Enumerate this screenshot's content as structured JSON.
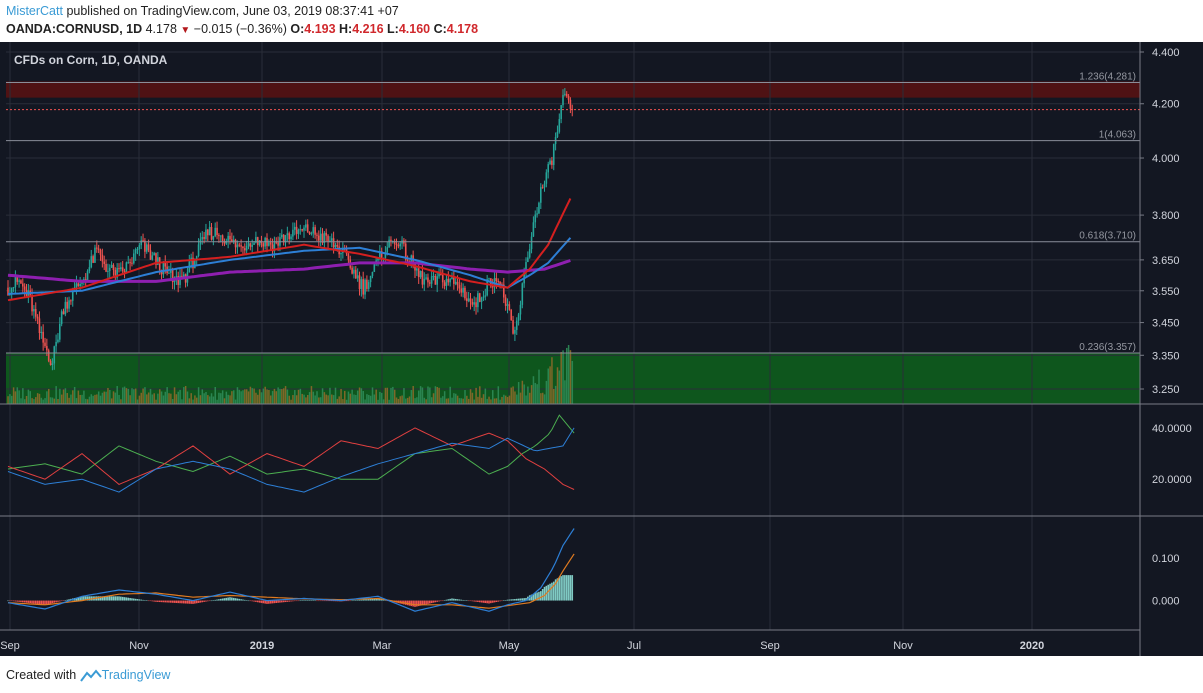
{
  "header": {
    "user": "MisterCatt",
    "published": "published on TradingView.com, June 03, 2019 08:37:41 +07",
    "symbol": "OANDA:CORNUSD, 1D",
    "last": "4.178",
    "change": "−0.015 (−0.36%)",
    "o_label": "O:",
    "o": "4.193",
    "h_label": "H:",
    "h": "4.216",
    "l_label": "L:",
    "l": "4.160",
    "c_label": "C:",
    "c": "4.178"
  },
  "footer": {
    "created_with": "Created with",
    "brand": "TradingView"
  },
  "colors": {
    "background": "#131722",
    "up": "#26a69a",
    "down": "#ef5350",
    "ema_red": "#d41f1f",
    "ema_blue": "#2d7fd6",
    "ema_purple": "#8e1fb0",
    "fib_top_zone": "#5a1212",
    "fib_bottom_zone": "#0e5a1d",
    "adx_red": "#e04040",
    "adx_green": "#4caf50",
    "adx_blue": "#2d7fd6",
    "macd_blue": "#2d7fd6",
    "macd_orange": "#e07b20"
  },
  "chart_data": {
    "type": "candlestick",
    "title": "CFDs on Corn, 1D, OANDA",
    "price_axis": {
      "ticks": [
        "4.400",
        "4.200",
        "4.000",
        "3.800",
        "3.650",
        "3.550",
        "3.450",
        "3.350",
        "3.250"
      ],
      "scale": "log"
    },
    "time_axis": {
      "ticks": [
        "Sep",
        "Nov",
        "2019",
        "Mar",
        "May",
        "Jul",
        "Sep",
        "Nov",
        "2020"
      ]
    },
    "fib_levels": [
      {
        "ratio": "1.236",
        "price": 4.281,
        "label": "1.236(4.281)"
      },
      {
        "ratio": "1",
        "price": 4.063,
        "label": "1(4.063)"
      },
      {
        "ratio": "0.618",
        "price": 3.71,
        "label": "0.618(3.710)"
      },
      {
        "ratio": "0.236",
        "price": 3.357,
        "label": "0.236(3.357)"
      }
    ],
    "last_price": 4.178,
    "price_anchors": [
      [
        0,
        3.56
      ],
      [
        6,
        3.58
      ],
      [
        12,
        3.52
      ],
      [
        18,
        3.4
      ],
      [
        24,
        3.33
      ],
      [
        30,
        3.5
      ],
      [
        36,
        3.55
      ],
      [
        42,
        3.6
      ],
      [
        48,
        3.68
      ],
      [
        54,
        3.62
      ],
      [
        60,
        3.6
      ],
      [
        66,
        3.64
      ],
      [
        72,
        3.7
      ],
      [
        78,
        3.66
      ],
      [
        84,
        3.62
      ],
      [
        90,
        3.58
      ],
      [
        96,
        3.6
      ],
      [
        102,
        3.67
      ],
      [
        108,
        3.74
      ],
      [
        114,
        3.74
      ],
      [
        120,
        3.71
      ],
      [
        126,
        3.69
      ],
      [
        132,
        3.72
      ],
      [
        138,
        3.71
      ],
      [
        144,
        3.7
      ],
      [
        150,
        3.73
      ],
      [
        156,
        3.74
      ],
      [
        162,
        3.75
      ],
      [
        168,
        3.73
      ],
      [
        174,
        3.71
      ],
      [
        180,
        3.68
      ],
      [
        186,
        3.62
      ],
      [
        192,
        3.56
      ],
      [
        198,
        3.62
      ],
      [
        204,
        3.69
      ],
      [
        210,
        3.72
      ],
      [
        216,
        3.66
      ],
      [
        222,
        3.6
      ],
      [
        228,
        3.57
      ],
      [
        234,
        3.59
      ],
      [
        240,
        3.58
      ],
      [
        246,
        3.55
      ],
      [
        252,
        3.5
      ],
      [
        258,
        3.56
      ],
      [
        264,
        3.6
      ],
      [
        270,
        3.5
      ],
      [
        273,
        3.4
      ],
      [
        276,
        3.47
      ],
      [
        279,
        3.6
      ],
      [
        282,
        3.7
      ],
      [
        285,
        3.8
      ],
      [
        288,
        3.88
      ],
      [
        291,
        3.93
      ],
      [
        294,
        4.0
      ],
      [
        297,
        4.1
      ],
      [
        300,
        4.22
      ],
      [
        303,
        4.2
      ],
      [
        305,
        4.18
      ]
    ],
    "ema_fast": [
      [
        0,
        3.52
      ],
      [
        40,
        3.56
      ],
      [
        80,
        3.64
      ],
      [
        120,
        3.66
      ],
      [
        160,
        3.7
      ],
      [
        190,
        3.67
      ],
      [
        220,
        3.63
      ],
      [
        250,
        3.58
      ],
      [
        270,
        3.56
      ],
      [
        282,
        3.62
      ],
      [
        292,
        3.7
      ],
      [
        305,
        3.87
      ]
    ],
    "ema_slow": [
      [
        0,
        3.54
      ],
      [
        40,
        3.55
      ],
      [
        80,
        3.61
      ],
      [
        120,
        3.65
      ],
      [
        160,
        3.68
      ],
      [
        190,
        3.69
      ],
      [
        220,
        3.65
      ],
      [
        250,
        3.6
      ],
      [
        270,
        3.56
      ],
      [
        282,
        3.6
      ],
      [
        292,
        3.64
      ],
      [
        305,
        3.73
      ]
    ],
    "ema_long": [
      [
        0,
        3.6
      ],
      [
        40,
        3.58
      ],
      [
        80,
        3.58
      ],
      [
        120,
        3.61
      ],
      [
        160,
        3.62
      ],
      [
        190,
        3.64
      ],
      [
        220,
        3.64
      ],
      [
        250,
        3.62
      ],
      [
        270,
        3.61
      ],
      [
        290,
        3.62
      ],
      [
        305,
        3.65
      ]
    ],
    "volume_range": [
      0,
      1
    ],
    "adx": {
      "ticks": [
        "40.0000",
        "20.0000"
      ],
      "range": [
        8,
        47
      ],
      "plus_di": [
        [
          0,
          25
        ],
        [
          20,
          20
        ],
        [
          40,
          30
        ],
        [
          60,
          18
        ],
        [
          80,
          24
        ],
        [
          100,
          33
        ],
        [
          120,
          22
        ],
        [
          140,
          30
        ],
        [
          160,
          25
        ],
        [
          180,
          35
        ],
        [
          200,
          32
        ],
        [
          220,
          40
        ],
        [
          240,
          33
        ],
        [
          260,
          38
        ],
        [
          270,
          35
        ],
        [
          280,
          28
        ],
        [
          290,
          24
        ],
        [
          300,
          18
        ],
        [
          306,
          16
        ]
      ],
      "minus_di": [
        [
          0,
          24
        ],
        [
          20,
          26
        ],
        [
          40,
          22
        ],
        [
          60,
          33
        ],
        [
          80,
          27
        ],
        [
          100,
          23
        ],
        [
          120,
          29
        ],
        [
          140,
          22
        ],
        [
          160,
          24
        ],
        [
          180,
          20
        ],
        [
          200,
          20
        ],
        [
          220,
          30
        ],
        [
          240,
          32
        ],
        [
          260,
          22
        ],
        [
          270,
          25
        ],
        [
          278,
          30
        ],
        [
          285,
          33
        ],
        [
          293,
          38
        ],
        [
          298,
          45
        ],
        [
          306,
          38
        ]
      ],
      "adx_line": [
        [
          0,
          23
        ],
        [
          20,
          18
        ],
        [
          40,
          20
        ],
        [
          60,
          15
        ],
        [
          80,
          24
        ],
        [
          100,
          27
        ],
        [
          120,
          24
        ],
        [
          140,
          18
        ],
        [
          160,
          15
        ],
        [
          180,
          21
        ],
        [
          200,
          26
        ],
        [
          220,
          30
        ],
        [
          240,
          34
        ],
        [
          260,
          32
        ],
        [
          270,
          36
        ],
        [
          285,
          31
        ],
        [
          300,
          33
        ],
        [
          306,
          40
        ]
      ]
    },
    "macd": {
      "ticks": [
        "0.100",
        "0.000"
      ],
      "range": [
        -0.06,
        0.19
      ],
      "macd_line": [
        [
          0,
          -0.005
        ],
        [
          20,
          -0.02
        ],
        [
          40,
          0.01
        ],
        [
          60,
          0.025
        ],
        [
          80,
          0.015
        ],
        [
          100,
          0.0
        ],
        [
          120,
          0.02
        ],
        [
          140,
          0.0
        ],
        [
          160,
          0.005
        ],
        [
          180,
          0.0
        ],
        [
          200,
          0.01
        ],
        [
          220,
          -0.025
        ],
        [
          240,
          -0.005
        ],
        [
          260,
          -0.025
        ],
        [
          270,
          -0.01
        ],
        [
          280,
          0.0
        ],
        [
          288,
          0.03
        ],
        [
          295,
          0.08
        ],
        [
          300,
          0.13
        ],
        [
          306,
          0.17
        ]
      ],
      "signal_line": [
        [
          0,
          -0.005
        ],
        [
          20,
          -0.01
        ],
        [
          40,
          0.0
        ],
        [
          60,
          0.015
        ],
        [
          80,
          0.018
        ],
        [
          100,
          0.008
        ],
        [
          120,
          0.012
        ],
        [
          140,
          0.008
        ],
        [
          160,
          0.004
        ],
        [
          180,
          0.002
        ],
        [
          200,
          0.005
        ],
        [
          220,
          -0.01
        ],
        [
          240,
          -0.01
        ],
        [
          260,
          -0.018
        ],
        [
          270,
          -0.012
        ],
        [
          282,
          -0.005
        ],
        [
          290,
          0.012
        ],
        [
          296,
          0.04
        ],
        [
          300,
          0.07
        ],
        [
          306,
          0.11
        ]
      ]
    }
  }
}
